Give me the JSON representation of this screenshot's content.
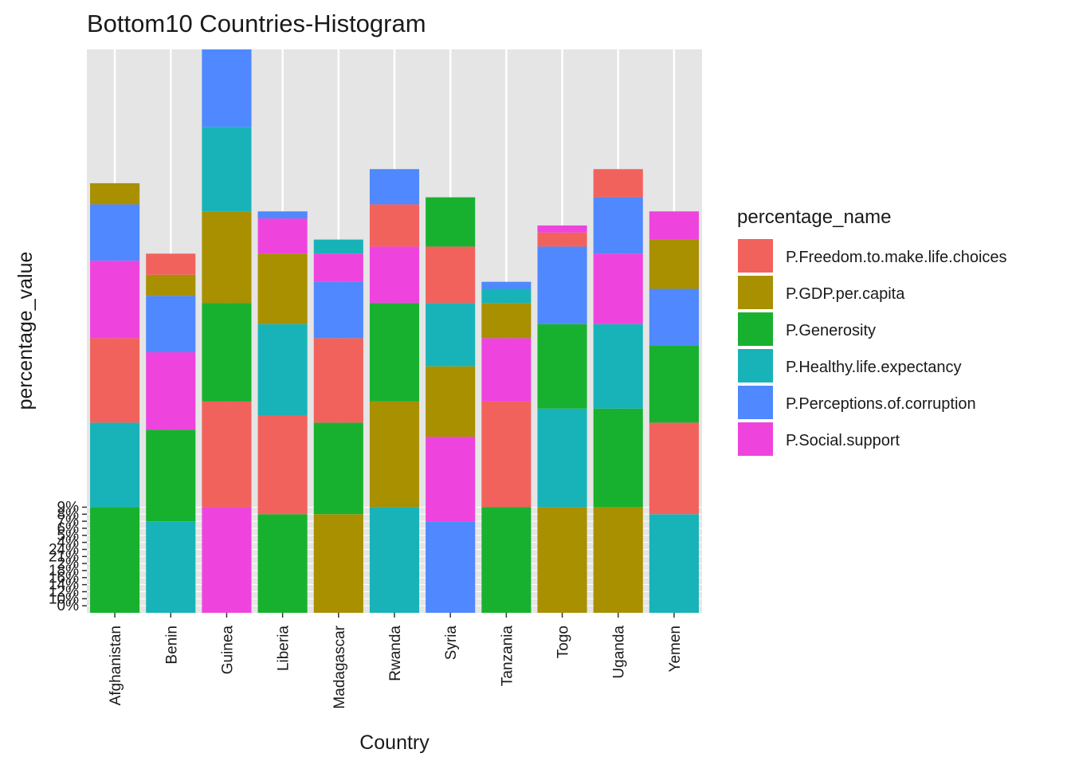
{
  "chart_data": {
    "type": "bar",
    "stacked": true,
    "title": "Bottom10 Countries-Histogram",
    "x_label": "Country",
    "y_label": "percentage_value",
    "legend_title": "percentage_name",
    "categories": [
      "Afghanistan",
      "Benin",
      "Guinea",
      "Liberia",
      "Madagascar",
      "Rwanda",
      "Syria",
      "Tanzania",
      "Togo",
      "Uganda",
      "Yemen"
    ],
    "series": [
      {
        "name": "P.Freedom.to.make.life.choices",
        "color": "#F2625C",
        "values": [
          12,
          3,
          15,
          14,
          12,
          6,
          8,
          15,
          2,
          4,
          13
        ]
      },
      {
        "name": "P.GDP.per.capita",
        "color": "#A89000",
        "values": [
          3,
          3,
          13,
          10,
          14,
          15,
          10,
          5,
          15,
          15,
          7
        ]
      },
      {
        "name": "P.Generosity",
        "color": "#18B12F",
        "values": [
          15,
          13,
          14,
          14,
          13,
          14,
          7,
          15,
          12,
          14,
          11
        ]
      },
      {
        "name": "P.Healthy.life.expectancy",
        "color": "#18B3B8",
        "values": [
          12,
          13,
          12,
          13,
          2,
          15,
          9,
          2,
          14,
          12,
          14
        ]
      },
      {
        "name": "P.Perceptions.of.corruption",
        "color": "#4F88FF",
        "values": [
          8,
          8,
          11,
          1,
          8,
          5,
          13,
          1,
          11,
          8,
          8
        ]
      },
      {
        "name": "P.Social.support",
        "color": "#EE44DD",
        "values": [
          11,
          11,
          15,
          5,
          4,
          8,
          12,
          9,
          1,
          10,
          4
        ]
      }
    ],
    "ylim": [
      0,
      80
    ],
    "ylevels": [
      "0%",
      "10%",
      "12%",
      "14%",
      "16%",
      "18%",
      "2%",
      "21%",
      "24%",
      "4%",
      "5%",
      "6%",
      "7%",
      "8%",
      "9%"
    ],
    "grid": true
  }
}
